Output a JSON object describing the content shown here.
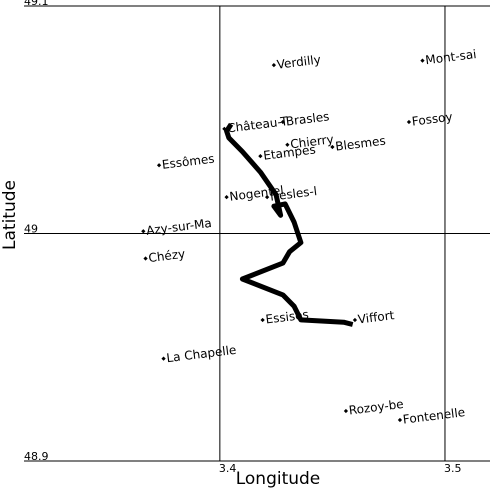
{
  "chart_data": {
    "type": "map",
    "xlabel": "Longitude",
    "ylabel": "Latitude",
    "xlim": [
      3.313,
      3.52
    ],
    "ylim": [
      48.9,
      49.1
    ],
    "x_ticks": [
      {
        "value": 3.4,
        "label": "3.4"
      },
      {
        "value": 3.5,
        "label": "3.5"
      }
    ],
    "y_ticks": [
      {
        "value": 49.1,
        "label": "49.1"
      },
      {
        "value": 49.0,
        "label": "49"
      },
      {
        "value": 48.9,
        "label": "48.9"
      }
    ],
    "grid": true,
    "route": {
      "lon": [
        3.405,
        3.403,
        3.404,
        3.41,
        3.418,
        3.425,
        3.427,
        3.424,
        3.429,
        3.433,
        3.436,
        3.431,
        3.428,
        3.41,
        3.428,
        3.433,
        3.436,
        3.455,
        3.459
      ],
      "lat": [
        49.048,
        49.045,
        49.042,
        49.036,
        49.027,
        49.017,
        49.008,
        49.012,
        49.013,
        49.005,
        48.996,
        48.992,
        48.987,
        48.98,
        48.973,
        48.968,
        48.962,
        48.961,
        48.96
      ]
    },
    "places": [
      {
        "name": "Verdilly",
        "lon": 3.424,
        "lat": 49.074
      },
      {
        "name": "Mont-sai",
        "lon": 3.49,
        "lat": 49.076
      },
      {
        "name": "Château-T",
        "lon": 3.402,
        "lat": 49.046
      },
      {
        "name": "Brasles",
        "lon": 3.428,
        "lat": 49.049
      },
      {
        "name": "Fossoy",
        "lon": 3.484,
        "lat": 49.049
      },
      {
        "name": "Chierry",
        "lon": 3.43,
        "lat": 49.039
      },
      {
        "name": "Blesmes",
        "lon": 3.45,
        "lat": 49.038
      },
      {
        "name": "Etampes",
        "lon": 3.418,
        "lat": 49.034
      },
      {
        "name": "Essômes",
        "lon": 3.373,
        "lat": 49.03
      },
      {
        "name": "Nogentel",
        "lon": 3.403,
        "lat": 49.016
      },
      {
        "name": "Nesles-l",
        "lon": 3.421,
        "lat": 49.016
      },
      {
        "name": "Azy-sur-Ma",
        "lon": 3.366,
        "lat": 49.001
      },
      {
        "name": "Chézy",
        "lon": 3.367,
        "lat": 48.989
      },
      {
        "name": "Essises",
        "lon": 3.419,
        "lat": 48.962
      },
      {
        "name": "Viffort",
        "lon": 3.46,
        "lat": 48.962
      },
      {
        "name": "La Chapelle",
        "lon": 3.375,
        "lat": 48.945
      },
      {
        "name": "Rozoy-be",
        "lon": 3.456,
        "lat": 48.922
      },
      {
        "name": "Fontenelle",
        "lon": 3.48,
        "lat": 48.918
      }
    ]
  }
}
